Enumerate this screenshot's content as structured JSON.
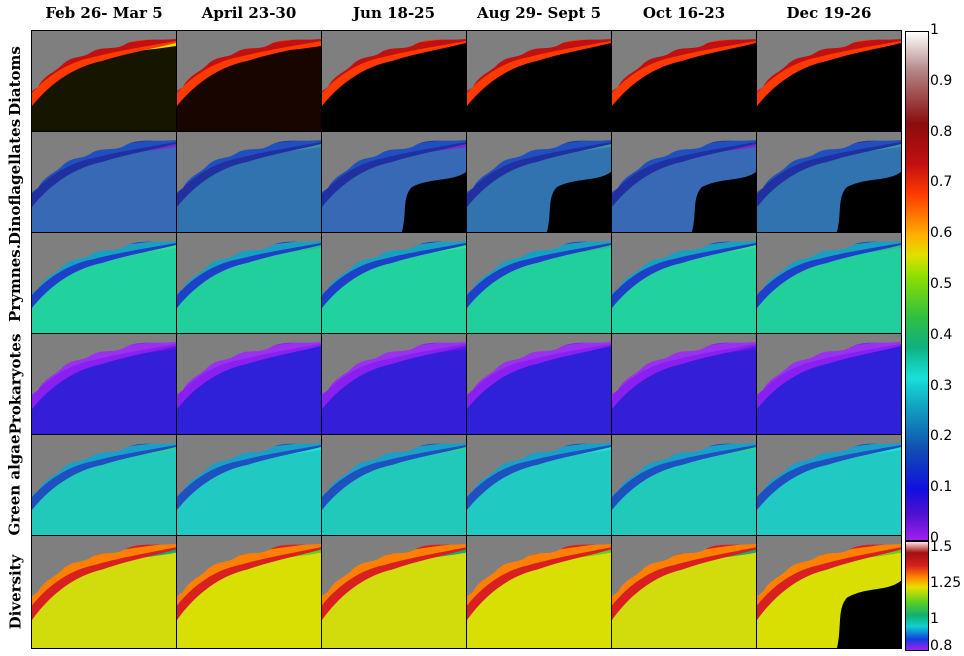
{
  "columns": [
    "Feb 26- Mar 5",
    "April 23-30",
    "Jun 18-25",
    "Aug 29- Sept 5",
    "Oct 16-23",
    "Dec 19-26"
  ],
  "rows": [
    "Diatoms",
    "Dinoflagellates",
    "Prymnes.",
    "Prokaryotes",
    "Green algae",
    "Diversity"
  ],
  "colorbar_main": {
    "ticks": [
      "1",
      "0.9",
      "0.8",
      "0.7",
      "0.6",
      "0.5",
      "0.4",
      "0.3",
      "0.2",
      "0.1",
      "0"
    ],
    "range": [
      0,
      1
    ]
  },
  "colorbar_diversity": {
    "ticks": [
      "1.5",
      "1.25",
      "1",
      "0.8"
    ],
    "range": [
      0.8,
      1.55
    ]
  },
  "colors": {
    "land": "#7f7f7f",
    "nodata": "#000000"
  }
}
